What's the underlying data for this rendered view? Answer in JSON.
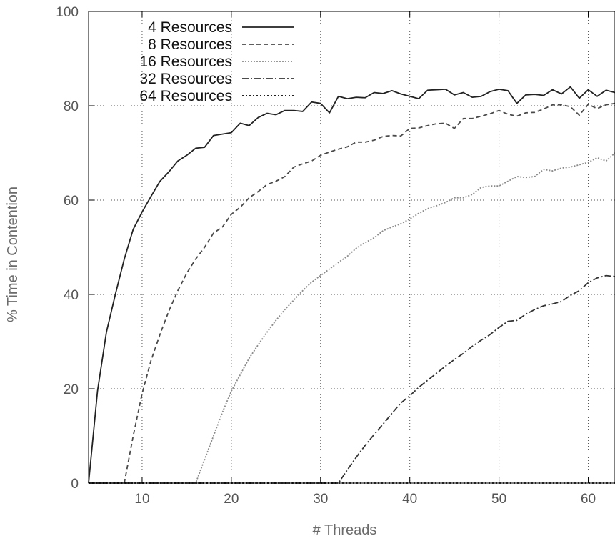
{
  "chart_data": {
    "type": "line",
    "title": "",
    "xlabel": "# Threads",
    "ylabel": "% Time in Contention",
    "xlim": [
      4,
      63
    ],
    "ylim": [
      0,
      100
    ],
    "xticks": [
      10,
      20,
      30,
      40,
      50,
      60
    ],
    "yticks": [
      0,
      20,
      40,
      60,
      80,
      100
    ],
    "grid": true,
    "legend_position": "top-left",
    "series": [
      {
        "name": "4 Resources",
        "color": "#222222",
        "dash": "",
        "x": [
          4,
          5,
          6,
          7,
          8,
          9,
          10,
          11,
          12,
          13,
          14,
          15,
          16,
          17,
          18,
          19,
          20,
          21,
          22,
          23,
          24,
          25,
          26,
          27,
          28,
          29,
          30,
          31,
          32,
          33,
          34,
          35,
          36,
          37,
          38,
          39,
          40,
          41,
          42,
          43,
          44,
          45,
          46,
          47,
          48,
          49,
          50,
          51,
          52,
          53,
          54,
          55,
          56,
          57,
          58,
          59,
          60,
          61,
          62,
          63
        ],
        "y": [
          0,
          19.5,
          32,
          40,
          47.5,
          53.8,
          57.5,
          60.8,
          64,
          66,
          68.3,
          69.5,
          71,
          71.2,
          73.7,
          74,
          74.3,
          76.3,
          75.8,
          77.5,
          78.4,
          78.1,
          79,
          79,
          78.8,
          80.8,
          80.5,
          78.5,
          82,
          81.5,
          81.8,
          81.7,
          82.8,
          82.6,
          83.2,
          82.5,
          82,
          81.5,
          83.3,
          83.4,
          83.5,
          82.3,
          82.8,
          81.8,
          82,
          83,
          83.5,
          83.2,
          80.5,
          82.3,
          82.4,
          82.2,
          83.4,
          82.5,
          84,
          81.6,
          83.4,
          82,
          83.3,
          82.8
        ]
      },
      {
        "name": "8 Resources",
        "color": "#4a4a4a",
        "dash": "6,4",
        "x": [
          4,
          5,
          6,
          7,
          8,
          9,
          10,
          11,
          12,
          13,
          14,
          15,
          16,
          17,
          18,
          19,
          20,
          21,
          22,
          23,
          24,
          25,
          26,
          27,
          28,
          29,
          30,
          31,
          32,
          33,
          34,
          35,
          36,
          37,
          38,
          39,
          40,
          41,
          42,
          43,
          44,
          45,
          46,
          47,
          48,
          49,
          50,
          51,
          52,
          53,
          54,
          55,
          56,
          57,
          58,
          59,
          60,
          61,
          62,
          63
        ],
        "y": [
          0,
          0,
          0,
          0,
          0,
          10,
          19,
          26,
          31.5,
          36.5,
          40.8,
          44.5,
          47.5,
          50,
          53,
          54.3,
          57,
          58.5,
          60.5,
          61.8,
          63.3,
          64,
          65,
          67,
          67.7,
          68.3,
          69.5,
          70.2,
          70.8,
          71.3,
          72.3,
          72.3,
          72.7,
          73.5,
          73.7,
          73.6,
          75.2,
          75.3,
          75.8,
          76.2,
          76.3,
          75.2,
          77.3,
          77.3,
          77.8,
          78.3,
          79,
          78.2,
          77.8,
          78.5,
          78.6,
          79.3,
          80.2,
          80.2,
          79.8,
          78,
          80.3,
          79.4,
          80.2,
          80.5
        ]
      },
      {
        "name": "16 Resources",
        "color": "#8a8a8a",
        "dash": "2,2",
        "x": [
          4,
          5,
          6,
          7,
          8,
          9,
          10,
          11,
          12,
          13,
          14,
          15,
          16,
          17,
          18,
          19,
          20,
          21,
          22,
          23,
          24,
          25,
          26,
          27,
          28,
          29,
          30,
          31,
          32,
          33,
          34,
          35,
          36,
          37,
          38,
          39,
          40,
          41,
          42,
          43,
          44,
          45,
          46,
          47,
          48,
          49,
          50,
          51,
          52,
          53,
          54,
          55,
          56,
          57,
          58,
          59,
          60,
          61,
          62,
          63
        ],
        "y": [
          0,
          0,
          0,
          0,
          0,
          0,
          0,
          0,
          0,
          0,
          0,
          0,
          0,
          5,
          10,
          15,
          19.5,
          23,
          26.5,
          29.3,
          32,
          34.5,
          36.8,
          38.8,
          40.8,
          42.6,
          44,
          45.4,
          46.8,
          48.1,
          49.8,
          51,
          52,
          53.5,
          54.3,
          55,
          56,
          57.2,
          58.2,
          58.8,
          59.5,
          60.5,
          60.5,
          61.2,
          62.7,
          63,
          63,
          64,
          65,
          64.8,
          65,
          66.5,
          66.2,
          66.8,
          67,
          67.5,
          68,
          69,
          68.3,
          70
        ]
      },
      {
        "name": "32 Resources",
        "color": "#333333",
        "dash": "9,3,2,3",
        "x": [
          4,
          5,
          6,
          7,
          8,
          9,
          10,
          11,
          12,
          13,
          14,
          15,
          16,
          17,
          18,
          19,
          20,
          21,
          22,
          23,
          24,
          25,
          26,
          27,
          28,
          29,
          30,
          31,
          32,
          33,
          34,
          35,
          36,
          37,
          38,
          39,
          40,
          41,
          42,
          43,
          44,
          45,
          46,
          47,
          48,
          49,
          50,
          51,
          52,
          53,
          54,
          55,
          56,
          57,
          58,
          59,
          60,
          61,
          62,
          63
        ],
        "y": [
          0,
          0,
          0,
          0,
          0,
          0,
          0,
          0,
          0,
          0,
          0,
          0,
          0,
          0,
          0,
          0,
          0,
          0,
          0,
          0,
          0,
          0,
          0,
          0,
          0,
          0,
          0,
          0,
          0,
          2.8,
          5.5,
          8,
          10.3,
          12.5,
          14.8,
          17,
          18.5,
          20.3,
          21.8,
          23.3,
          24.8,
          26.2,
          27.5,
          29,
          30.3,
          31.5,
          33,
          34.3,
          34.5,
          35.8,
          36.8,
          37.6,
          38,
          38.5,
          39.8,
          40.8,
          42.5,
          43.5,
          44,
          43.8
        ]
      },
      {
        "name": "64 Resources",
        "color": "#000000",
        "dash": "2,3",
        "x": [
          4,
          10,
          20,
          30,
          40,
          50,
          60,
          63
        ],
        "y": [
          0,
          0,
          0,
          0,
          0,
          0,
          0,
          0
        ]
      }
    ]
  }
}
